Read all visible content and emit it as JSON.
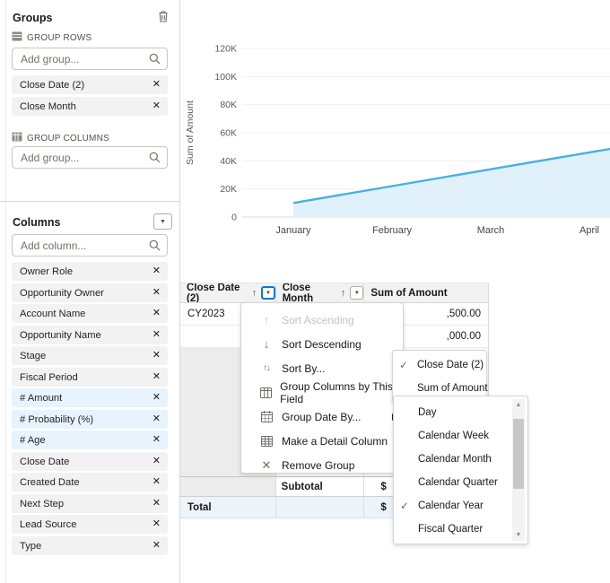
{
  "sidebar": {
    "groups_panel": {
      "title": "Groups",
      "group_rows_label": "GROUP ROWS",
      "group_rows_placeholder": "Add group...",
      "row_groups": [
        "Close Date (2)",
        "Close Month"
      ],
      "group_columns_label": "GROUP COLUMNS",
      "group_columns_placeholder": "Add group..."
    },
    "columns_panel": {
      "title": "Columns",
      "placeholder": "Add column...",
      "columns": [
        {
          "label": "Owner Role",
          "numeric": false
        },
        {
          "label": "Opportunity Owner",
          "numeric": false
        },
        {
          "label": "Account Name",
          "numeric": false
        },
        {
          "label": "Opportunity Name",
          "numeric": false
        },
        {
          "label": "Stage",
          "numeric": false
        },
        {
          "label": "Fiscal Period",
          "numeric": false
        },
        {
          "label": "# Amount",
          "numeric": true
        },
        {
          "label": "# Probability (%)",
          "numeric": true
        },
        {
          "label": "# Age",
          "numeric": true
        },
        {
          "label": "Close Date",
          "numeric": false
        },
        {
          "label": "Created Date",
          "numeric": false
        },
        {
          "label": "Next Step",
          "numeric": false
        },
        {
          "label": "Lead Source",
          "numeric": false
        },
        {
          "label": "Type",
          "numeric": false
        }
      ]
    }
  },
  "chart_data": {
    "type": "area",
    "x": [
      "January",
      "February",
      "March",
      "April"
    ],
    "values": [
      10000,
      22000,
      34000,
      46000
    ],
    "edge_value": 48500,
    "title": "",
    "xlabel": "",
    "ylabel": "Sum of Amount",
    "ylim": [
      0,
      130000
    ],
    "ytick_values": [
      0,
      20000,
      40000,
      60000,
      80000,
      100000,
      120000
    ],
    "ytick_labels": [
      "0",
      "20K",
      "40K",
      "60K",
      "80K",
      "100K",
      "120K"
    ],
    "grid": true,
    "legend": "none",
    "line_color": "#49b0e3",
    "fill_color": "#e1f1fb"
  },
  "table": {
    "headers": [
      {
        "label": "Close Date (2)",
        "sort_arrow": "↑"
      },
      {
        "label": "Close Month",
        "sort_arrow": "↑"
      },
      {
        "label": "Sum of Amount"
      }
    ],
    "rows": [
      {
        "group": "CY2023",
        "amount_visible": ",500.00"
      },
      {
        "group": "",
        "amount_visible": ",000.00"
      }
    ],
    "subtotal_label": "Subtotal",
    "subtotal_amount_visible": "$",
    "total_label": "Total",
    "total_amount_visible": "$"
  },
  "context_menu": {
    "items": [
      {
        "label": "Sort Ascending",
        "icon": "arrow-up",
        "disabled": true,
        "has_submenu": false
      },
      {
        "label": "Sort Descending",
        "icon": "arrow-down",
        "disabled": false,
        "has_submenu": false
      },
      {
        "label": "Sort By...",
        "icon": "arrows-sort",
        "disabled": false,
        "has_submenu": true
      },
      {
        "label": "Group Columns by This Field",
        "icon": "table-columns",
        "disabled": false,
        "has_submenu": false
      },
      {
        "label": "Group Date By...",
        "icon": "calendar",
        "disabled": false,
        "has_submenu": true
      },
      {
        "label": "Make a Detail Column",
        "icon": "table-detail",
        "disabled": false,
        "has_submenu": false
      },
      {
        "label": "Remove Group",
        "icon": "close",
        "disabled": false,
        "has_submenu": false
      }
    ]
  },
  "sort_by_submenu": {
    "items": [
      {
        "label": "Close Date (2)",
        "checked": true
      },
      {
        "label": "Sum of Amount",
        "checked": false
      }
    ]
  },
  "group_date_by_submenu": {
    "items": [
      {
        "label": "Day",
        "checked": false
      },
      {
        "label": "Calendar Week",
        "checked": false
      },
      {
        "label": "Calendar Month",
        "checked": false
      },
      {
        "label": "Calendar Quarter",
        "checked": false
      },
      {
        "label": "Calendar Year",
        "checked": true
      },
      {
        "label": "Fiscal Quarter",
        "checked": false
      }
    ],
    "has_scrollbar": true
  },
  "colors": {
    "accent_blue": "#0b78d0",
    "pill_bg": "#f3f2f2",
    "numeric_pill_bg": "#e7f3fd",
    "table_header_bg": "#f3f2f2",
    "total_row_bg": "#ecf3fb",
    "group_span_bg": "#ececec",
    "chart_line": "#49b0e3",
    "chart_fill": "#e1f1fb"
  }
}
